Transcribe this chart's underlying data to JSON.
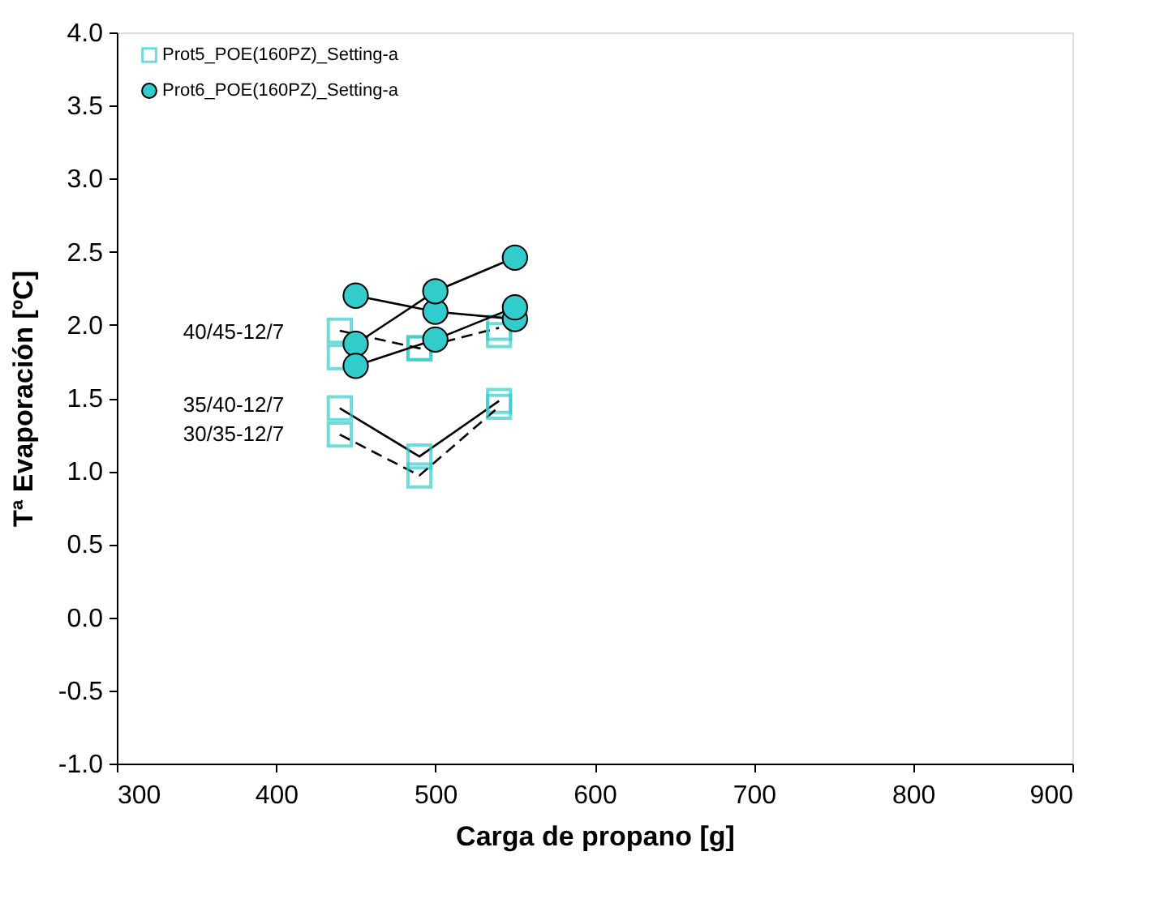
{
  "chart_data": {
    "type": "line",
    "xlabel": "Carga de propano [g]",
    "ylabel": "Tª Evaporación [ºC]",
    "xlim": [
      300,
      900
    ],
    "xticks": [
      300,
      400,
      500,
      600,
      700,
      800,
      900
    ],
    "ylim": [
      -1,
      4
    ],
    "yticks": [
      {
        "value": -1,
        "label": "-1.0"
      },
      {
        "value": -0.5,
        "label": "-0.5"
      },
      {
        "value": 0,
        "label": "0.0"
      },
      {
        "value": 0.5,
        "label": "0.5"
      },
      {
        "value": 1,
        "label": "1.0"
      },
      {
        "value": 1.5,
        "label": "1.5"
      },
      {
        "value": 2,
        "label": "2.0"
      },
      {
        "value": 2.5,
        "label": "2.5"
      },
      {
        "value": 3,
        "label": "3.0"
      },
      {
        "value": 3.5,
        "label": "3.5"
      },
      {
        "value": 4,
        "label": "4.0"
      }
    ],
    "grid": false,
    "legend": "top left",
    "series": [
      {
        "name": "Prot5_POE(160PZ)_Setting-a",
        "marker": "square",
        "line_style": "dashed",
        "color": "#33cccc",
        "x": [
          440,
          490,
          540
        ],
        "values": [
          1.96,
          1.84,
          1.98
        ]
      },
      {
        "type": "scatter",
        "marker": "square",
        "color": "#33cccc",
        "x": [
          440,
          490,
          540
        ],
        "values": [
          1.78,
          1.84,
          1.93
        ]
      },
      {
        "marker": "square",
        "line_style": "solid",
        "color": "#33cccc",
        "x": [
          440,
          490,
          540
        ],
        "values": [
          1.43,
          1.1,
          1.48
        ]
      },
      {
        "marker": "square",
        "line_style": "dashed",
        "color": "#33cccc",
        "x": [
          440,
          490,
          540
        ],
        "values": [
          1.25,
          0.97,
          1.44
        ]
      },
      {
        "name": "Prot6_POE(160PZ)_Setting-a",
        "marker": "circle",
        "line_style": "solid",
        "color": "#33cccc",
        "x": [
          450,
          500,
          550
        ],
        "values": [
          2.2,
          2.09,
          2.04
        ]
      },
      {
        "marker": "circle",
        "line_style": "solid",
        "color": "#33cccc",
        "x": [
          450,
          500,
          550
        ],
        "values": [
          1.87,
          2.23,
          2.46
        ]
      },
      {
        "marker": "circle",
        "line_style": "solid",
        "color": "#33cccc",
        "x": [
          450,
          500,
          550
        ],
        "values": [
          1.72,
          1.9,
          2.12
        ]
      }
    ],
    "annotations": [
      "40/45-12/7",
      "35/40-12/7",
      "30/35-12/7"
    ]
  }
}
